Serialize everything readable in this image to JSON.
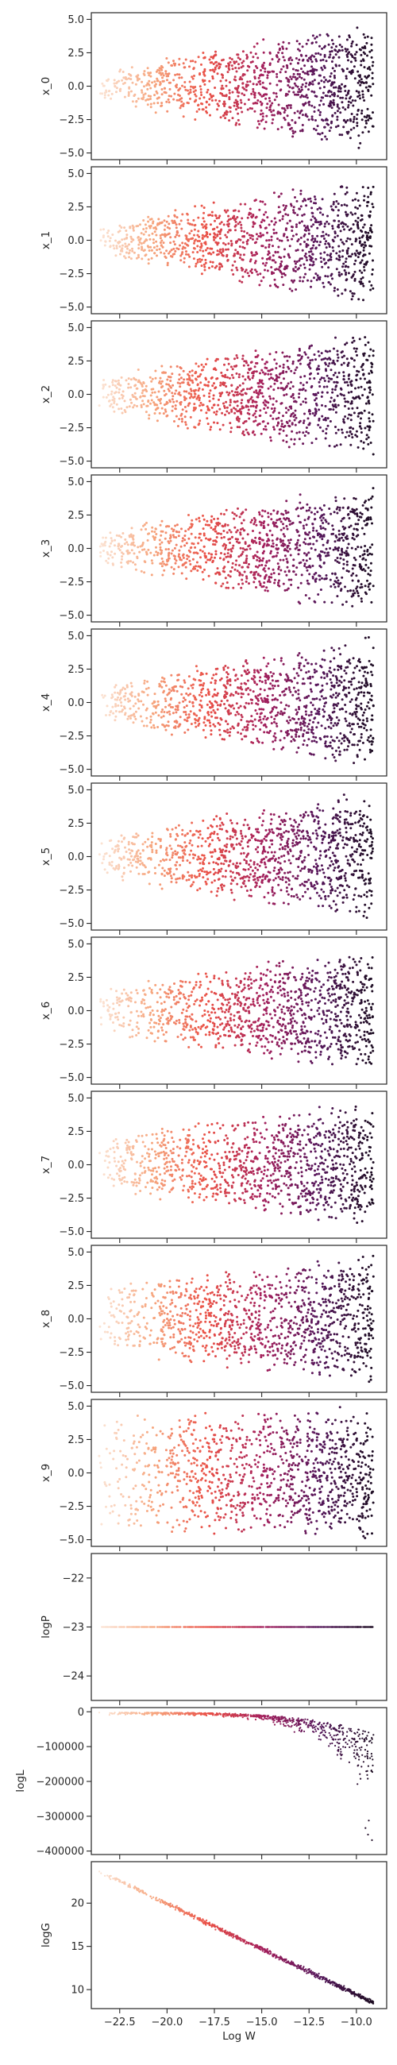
{
  "chart_data": {
    "type": "scatter",
    "x": {
      "label": "Log W",
      "range": [
        -24.0,
        -8.4
      ],
      "ticks": [
        -22.5,
        -20.0,
        -17.5,
        -15.0,
        -12.5,
        -10.0
      ],
      "tick_labels": [
        "−22.5",
        "−20.0",
        "−17.5",
        "−15.0",
        "−12.5",
        "−10.0"
      ]
    },
    "colormap": [
      "#fbe5d6",
      "#f6a47c",
      "#e94f46",
      "#a3205d",
      "#56175b",
      "#1c0c22"
    ],
    "panels": [
      {
        "ylabel": "x_0",
        "ylim": [
          -5.5,
          5.5
        ],
        "ticks": [
          5.0,
          2.5,
          0.0,
          -2.5,
          -5.0
        ],
        "tick_labels": [
          "5.0",
          "2.5",
          "0.0",
          "−2.5",
          "−5.0"
        ],
        "pattern": "funnel",
        "start_spread": 0.9
      },
      {
        "ylabel": "x_1",
        "ylim": [
          -5.5,
          5.5
        ],
        "ticks": [
          5.0,
          2.5,
          0.0,
          -2.5,
          -5.0
        ],
        "tick_labels": [
          "5.0",
          "2.5",
          "0.0",
          "−2.5",
          "−5.0"
        ],
        "pattern": "funnel",
        "start_spread": 1.0
      },
      {
        "ylabel": "x_2",
        "ylim": [
          -5.5,
          5.5
        ],
        "ticks": [
          5.0,
          2.5,
          0.0,
          -2.5,
          -5.0
        ],
        "tick_labels": [
          "5.0",
          "2.5",
          "0.0",
          "−2.5",
          "−5.0"
        ],
        "pattern": "funnel",
        "start_spread": 1.1
      },
      {
        "ylabel": "x_3",
        "ylim": [
          -5.5,
          5.5
        ],
        "ticks": [
          5.0,
          2.5,
          0.0,
          -2.5,
          -5.0
        ],
        "tick_labels": [
          "5.0",
          "2.5",
          "0.0",
          "−2.5",
          "−5.0"
        ],
        "pattern": "funnel",
        "start_spread": 1.1
      },
      {
        "ylabel": "x_4",
        "ylim": [
          -5.5,
          5.5
        ],
        "ticks": [
          5.0,
          2.5,
          0.0,
          -2.5,
          -5.0
        ],
        "tick_labels": [
          "5.0",
          "2.5",
          "0.0",
          "−2.5",
          "−5.0"
        ],
        "pattern": "funnel",
        "start_spread": 1.2
      },
      {
        "ylabel": "x_5",
        "ylim": [
          -5.5,
          5.5
        ],
        "ticks": [
          5.0,
          2.5,
          0.0,
          -2.5,
          -5.0
        ],
        "tick_labels": [
          "5.0",
          "2.5",
          "0.0",
          "−2.5",
          "−5.0"
        ],
        "pattern": "funnel",
        "start_spread": 1.3
      },
      {
        "ylabel": "x_6",
        "ylim": [
          -5.5,
          5.5
        ],
        "ticks": [
          5.0,
          2.5,
          0.0,
          -2.5,
          -5.0
        ],
        "tick_labels": [
          "5.0",
          "2.5",
          "0.0",
          "−2.5",
          "−5.0"
        ],
        "pattern": "funnel",
        "start_spread": 1.5
      },
      {
        "ylabel": "x_7",
        "ylim": [
          -5.5,
          5.5
        ],
        "ticks": [
          5.0,
          2.5,
          0.0,
          -2.5,
          -5.0
        ],
        "tick_labels": [
          "5.0",
          "2.5",
          "0.0",
          "−2.5",
          "−5.0"
        ],
        "pattern": "funnel",
        "start_spread": 1.8
      },
      {
        "ylabel": "x_8",
        "ylim": [
          -5.5,
          5.5
        ],
        "ticks": [
          5.0,
          2.5,
          0.0,
          -2.5,
          -5.0
        ],
        "tick_labels": [
          "5.0",
          "2.5",
          "0.0",
          "−2.5",
          "−5.0"
        ],
        "pattern": "funnel",
        "start_spread": 2.4
      },
      {
        "ylabel": "x_9",
        "ylim": [
          -5.5,
          5.5
        ],
        "ticks": [
          5.0,
          2.5,
          0.0,
          -2.5,
          -5.0
        ],
        "tick_labels": [
          "5.0",
          "2.5",
          "0.0",
          "−2.5",
          "−5.0"
        ],
        "pattern": "funnel",
        "start_spread": 4.6
      },
      {
        "ylabel": "logP",
        "ylim": [
          -24.5,
          -21.5
        ],
        "ticks": [
          -22,
          -23,
          -24
        ],
        "tick_labels": [
          "−22",
          "−23",
          "−24"
        ],
        "pattern": "constant",
        "value": -23.0
      },
      {
        "ylabel": "logL",
        "ylim": [
          -410000,
          12000
        ],
        "ticks": [
          0,
          -100000,
          -200000,
          -300000,
          -400000
        ],
        "tick_labels": [
          "0",
          "−100000",
          "−200000",
          "−300000",
          "−400000"
        ],
        "pattern": "likelihood"
      },
      {
        "ylabel": "logG",
        "ylim": [
          7.8,
          24.8
        ],
        "ticks": [
          20,
          15,
          10
        ],
        "tick_labels": [
          "20",
          "15",
          "10"
        ],
        "pattern": "linear",
        "from": [
          -23.5,
          23.6
        ],
        "to": [
          -9.2,
          8.6
        ]
      }
    ]
  }
}
